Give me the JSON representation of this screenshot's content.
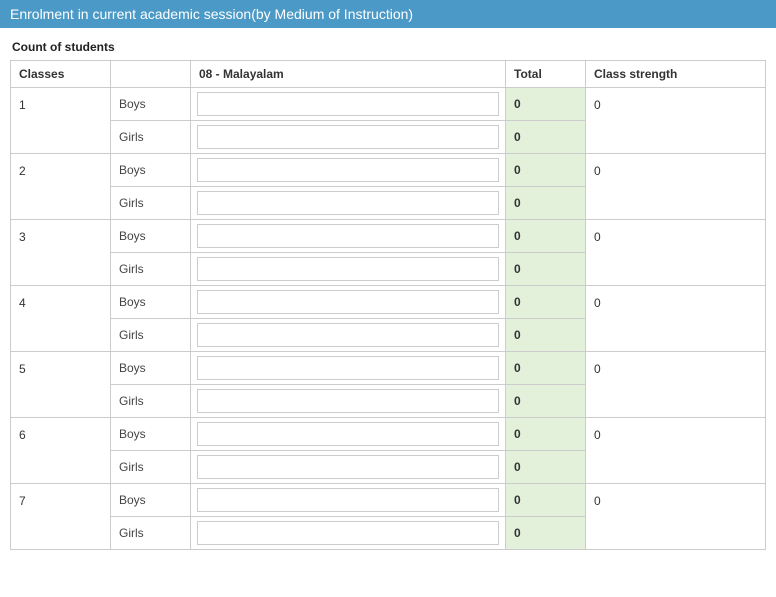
{
  "header": {
    "title": "Enrolment in current academic session(by Medium of Instruction)"
  },
  "subtitle": "Count of students",
  "columns": {
    "classes": "Classes",
    "gender": "",
    "medium": "08 - Malayalam",
    "total": "Total",
    "strength": "Class strength"
  },
  "gender_labels": {
    "boys": "Boys",
    "girls": "Girls"
  },
  "rows": [
    {
      "class": "1",
      "boys_val": "",
      "girls_val": "",
      "boys_total": "0",
      "girls_total": "0",
      "strength": "0"
    },
    {
      "class": "2",
      "boys_val": "",
      "girls_val": "",
      "boys_total": "0",
      "girls_total": "0",
      "strength": "0"
    },
    {
      "class": "3",
      "boys_val": "",
      "girls_val": "",
      "boys_total": "0",
      "girls_total": "0",
      "strength": "0"
    },
    {
      "class": "4",
      "boys_val": "",
      "girls_val": "",
      "boys_total": "0",
      "girls_total": "0",
      "strength": "0"
    },
    {
      "class": "5",
      "boys_val": "",
      "girls_val": "",
      "boys_total": "0",
      "girls_total": "0",
      "strength": "0"
    },
    {
      "class": "6",
      "boys_val": "",
      "girls_val": "",
      "boys_total": "0",
      "girls_total": "0",
      "strength": "0"
    },
    {
      "class": "7",
      "boys_val": "",
      "girls_val": "",
      "boys_total": "0",
      "girls_total": "0",
      "strength": "0"
    }
  ]
}
